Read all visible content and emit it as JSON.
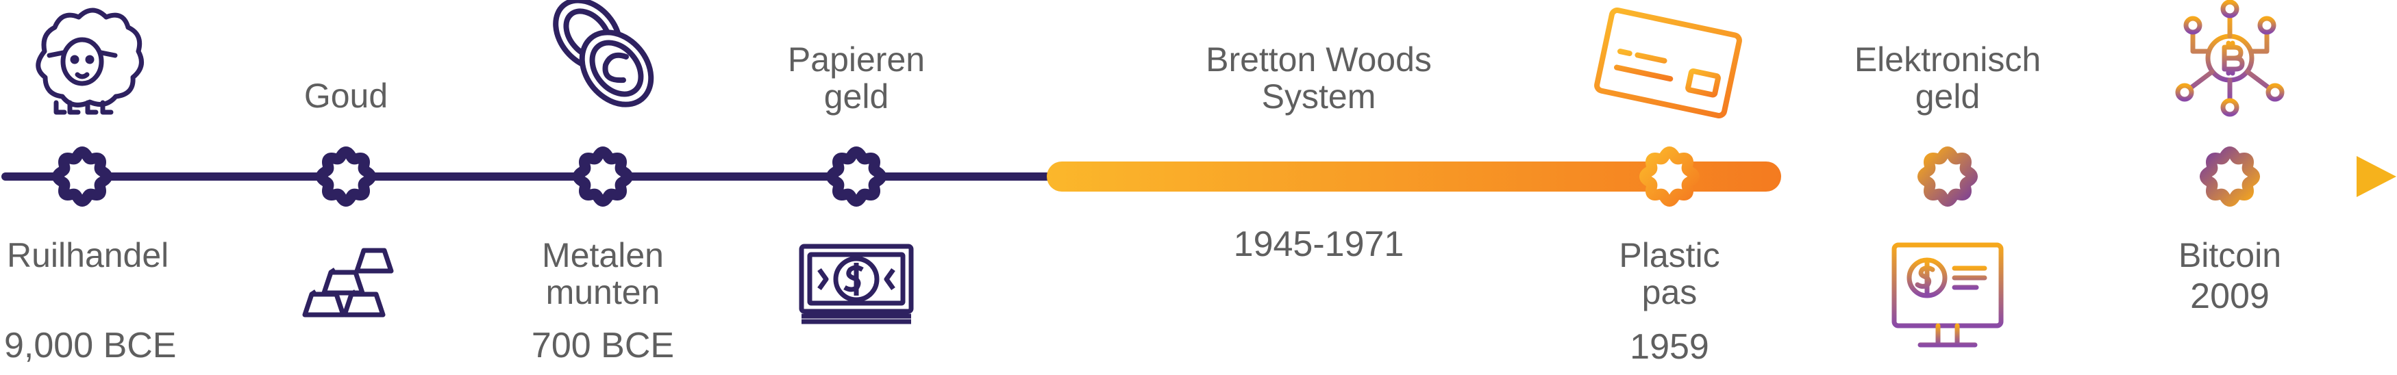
{
  "timeline": {
    "events": [
      {
        "label_lines": [
          "Ruilhandel"
        ],
        "date": "9,000 BCE",
        "icon": "sheep-icon",
        "label_position": "below",
        "icon_position": "above"
      },
      {
        "label_lines": [
          "Goud"
        ],
        "date": "",
        "icon": "gold-bars-icon",
        "label_position": "above",
        "icon_position": "below"
      },
      {
        "label_lines": [
          "Metalen",
          "munten"
        ],
        "date": "700 BCE",
        "icon": "coins-icon",
        "label_position": "below",
        "icon_position": "above"
      },
      {
        "label_lines": [
          "Papieren",
          "geld"
        ],
        "date": "",
        "icon": "banknote-icon",
        "label_position": "above",
        "icon_position": "below"
      },
      {
        "label_lines": [
          "Bretton Woods",
          "System"
        ],
        "date": "1945-1971",
        "icon": "",
        "label_position": "above",
        "icon_position": "none"
      },
      {
        "label_lines": [
          "Plastic",
          "pas"
        ],
        "date": "1959",
        "icon": "credit-card-icon",
        "label_position": "below",
        "icon_position": "above"
      },
      {
        "label_lines": [
          "Elektronisch",
          "geld"
        ],
        "date": "",
        "icon": "computer-dollar-icon",
        "label_position": "above",
        "icon_position": "below"
      },
      {
        "label_lines": [
          "Bitcoin"
        ],
        "date": "2009",
        "icon": "bitcoin-network-icon",
        "label_position": "below",
        "icon_position": "above"
      }
    ]
  },
  "colors": {
    "navy": "#2e2160",
    "orange_start": "#fbb72b",
    "orange_end": "#f47b20",
    "purple": "#7b3f98",
    "gold": "#f6a81c",
    "text": "#5f5f5f"
  }
}
